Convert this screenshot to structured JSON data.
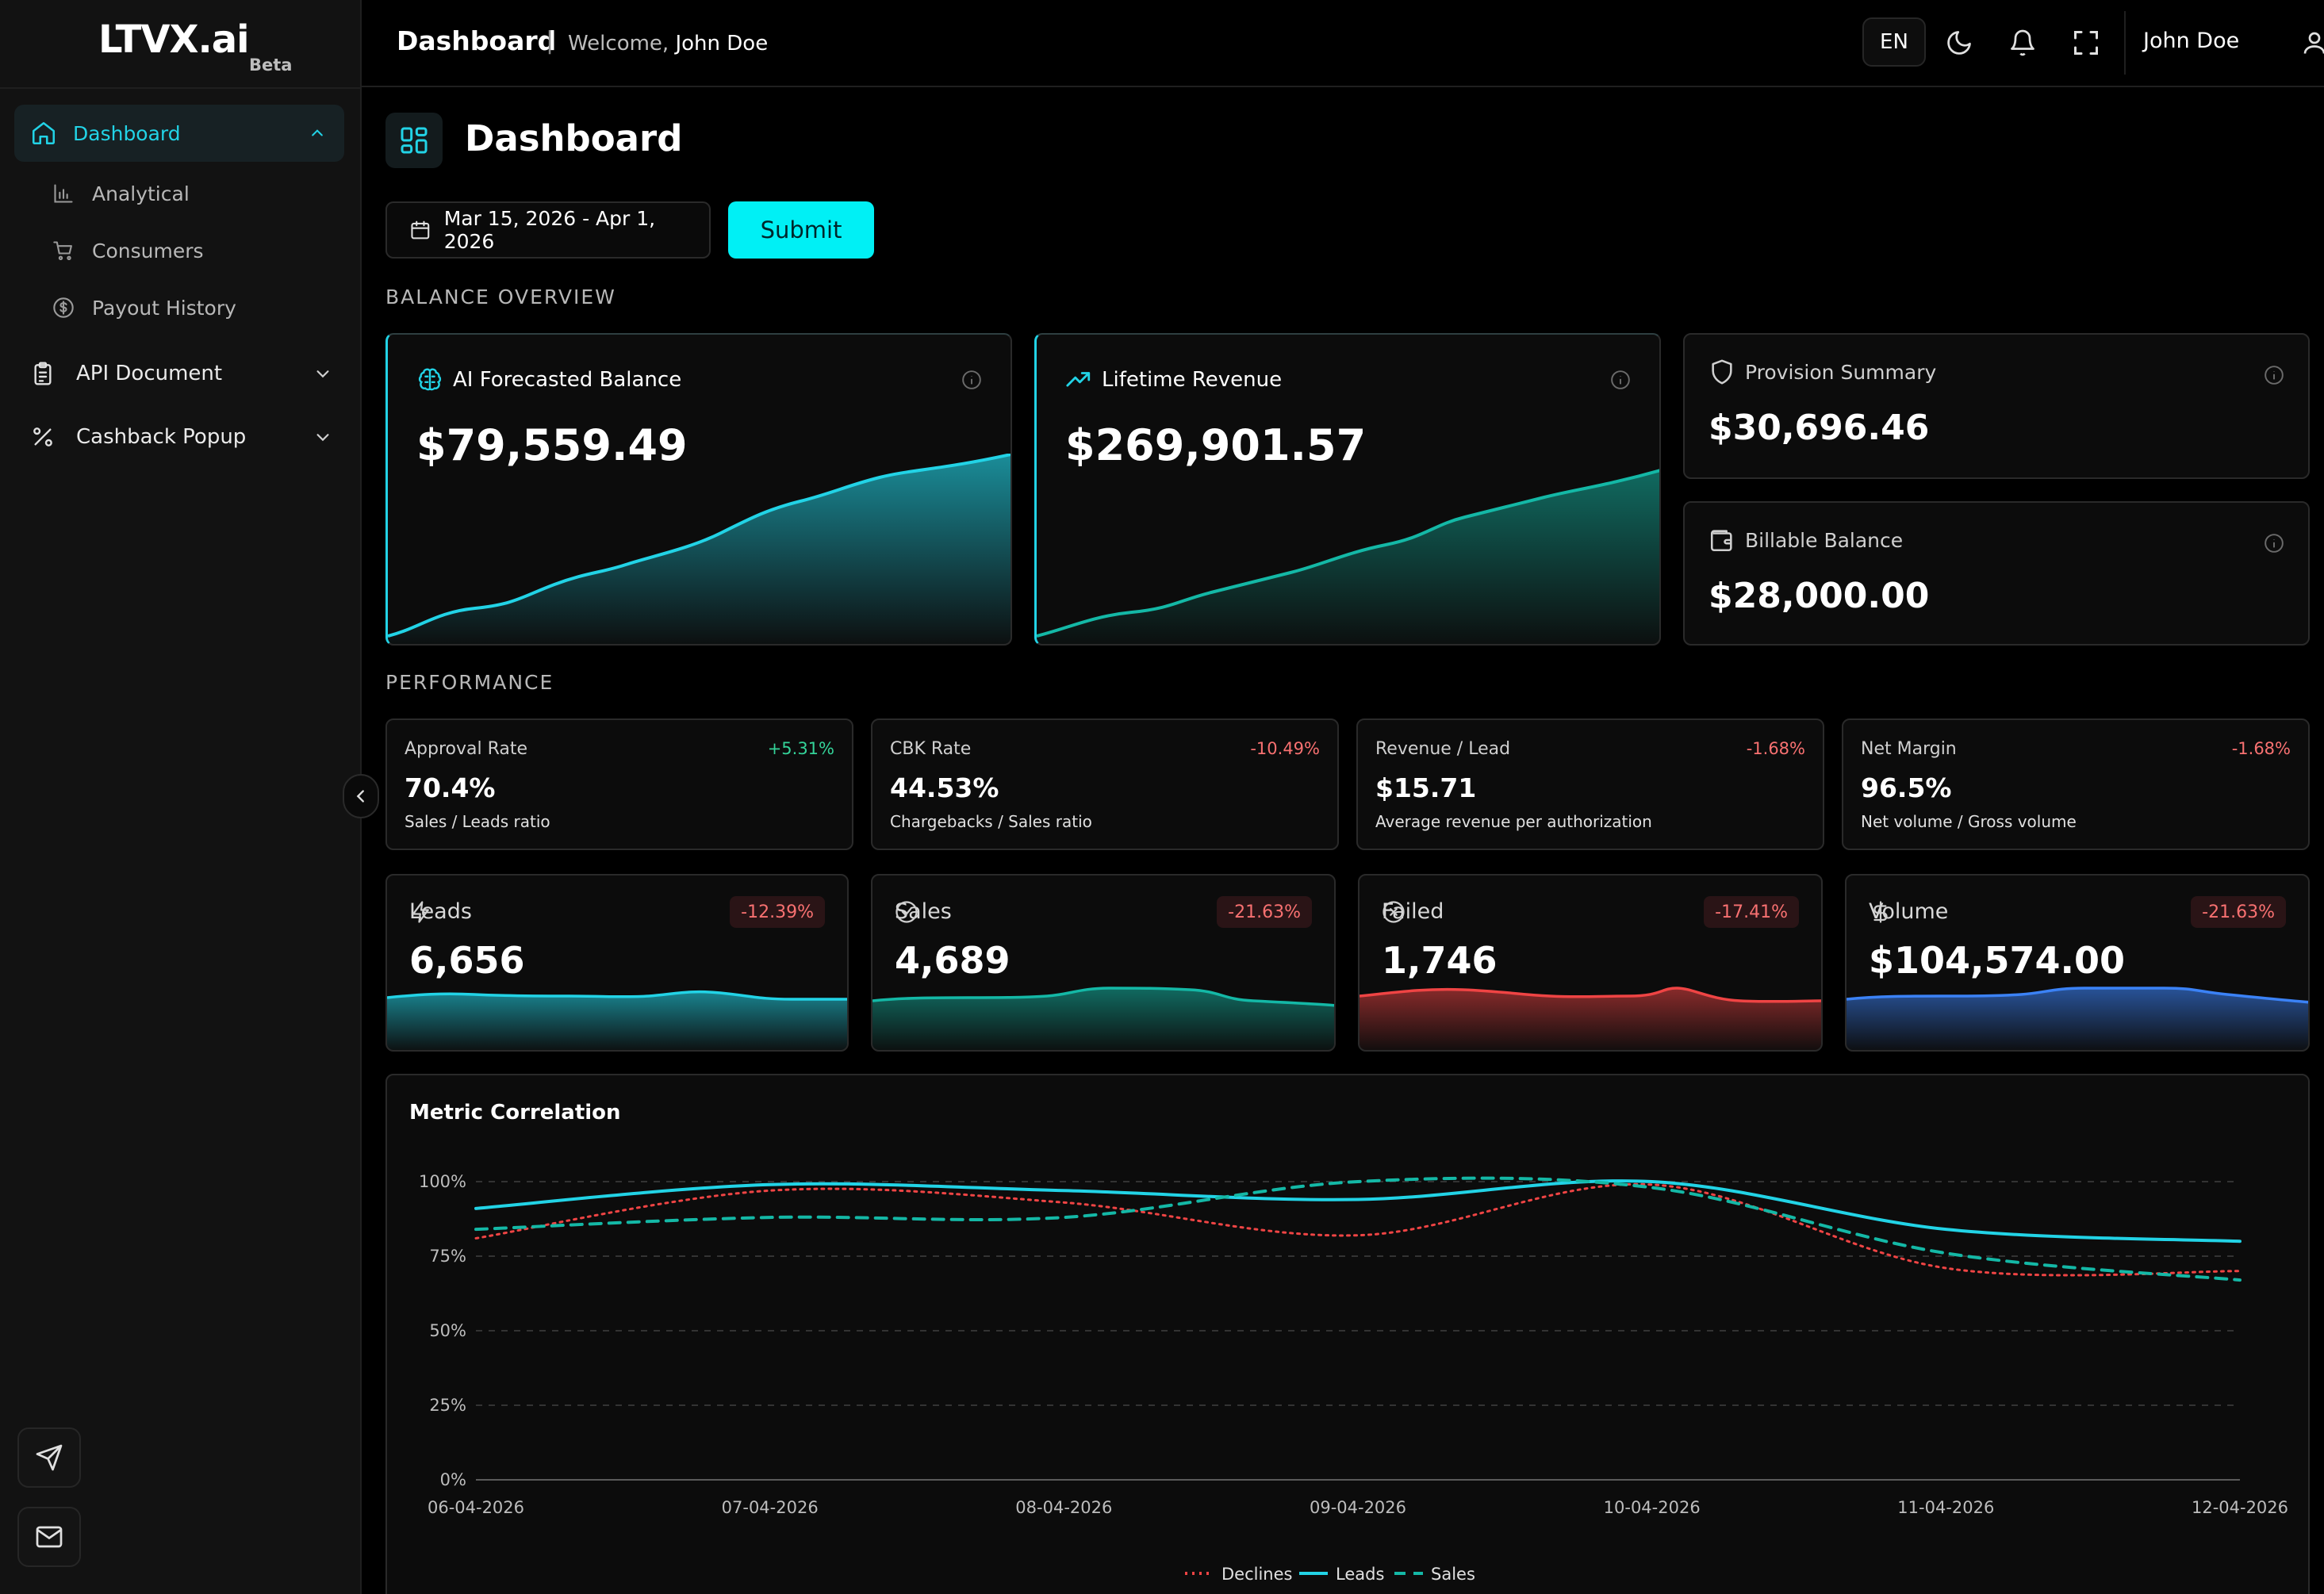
{
  "app": {
    "logo": "LTVX.ai",
    "beta": "Beta"
  },
  "sidebar": {
    "active": {
      "label": "Dashboard",
      "icon": "home-icon"
    },
    "subitems": [
      {
        "label": "Analytical",
        "icon": "bar-chart-icon"
      },
      {
        "label": "Consumers",
        "icon": "cart-icon"
      },
      {
        "label": "Payout History",
        "icon": "dollar-circle-icon"
      }
    ],
    "groups": [
      {
        "label": "API Document",
        "icon": "clipboard-icon"
      },
      {
        "label": "Cashback Popup",
        "icon": "percent-icon"
      }
    ]
  },
  "header": {
    "title": "Dashboard",
    "welcome_prefix": "Welcome,",
    "welcome_name": "John Doe",
    "lang": "EN",
    "username": "John Doe"
  },
  "page": {
    "title": "Dashboard",
    "date_range": "Mar 15, 2026 - Apr 1, 2026",
    "submit": "Submit"
  },
  "balance": {
    "section_label": "BALANCE OVERVIEW",
    "cards": [
      {
        "title": "AI Forecasted Balance",
        "amount": "$79,559.49",
        "icon": "brain-icon"
      },
      {
        "title": "Lifetime Revenue",
        "amount": "$269,901.57",
        "icon": "trending-up-icon"
      },
      {
        "title": "Provision Summary",
        "amount": "$30,696.46",
        "icon": "shield-icon"
      },
      {
        "title": "Billable Balance",
        "amount": "$28,000.00",
        "icon": "wallet-icon"
      }
    ]
  },
  "performance": {
    "section_label": "PERFORMANCE",
    "cards": [
      {
        "title": "Approval Rate",
        "delta": "+5.31%",
        "value": "70.4%",
        "subtitle": "Sales / Leads ratio"
      },
      {
        "title": "CBK Rate",
        "delta": "-10.49%",
        "value": "44.53%",
        "subtitle": "Chargebacks / Sales ratio"
      },
      {
        "title": "Revenue / Lead",
        "delta": "-1.68%",
        "value": "$15.71",
        "subtitle": "Average revenue per authorization"
      },
      {
        "title": "Net Margin",
        "delta": "-1.68%",
        "value": "96.5%",
        "subtitle": "Net volume / Gross volume"
      }
    ]
  },
  "kpis": [
    {
      "title": "Leads",
      "delta": "-12.39%",
      "value": "6,656",
      "icon": "bolt-icon",
      "color": "#22d3e6"
    },
    {
      "title": "Sales",
      "delta": "-21.63%",
      "value": "4,689",
      "icon": "check-circle-icon",
      "color": "#14b8a6"
    },
    {
      "title": "Failed",
      "delta": "-17.41%",
      "value": "1,746",
      "icon": "x-circle-icon",
      "color": "#ef4444"
    },
    {
      "title": "Volume",
      "delta": "-21.63%",
      "value": "$104,574.00",
      "icon": "dollar-icon",
      "color": "#3b82f6"
    }
  ],
  "correlation": {
    "title": "Metric Correlation"
  },
  "chart_data": {
    "type": "line",
    "title": "Metric Correlation",
    "x": [
      "06-04-2026",
      "07-04-2026",
      "08-04-2026",
      "09-04-2026",
      "10-04-2026",
      "11-04-2026",
      "12-04-2026"
    ],
    "y_ticks": [
      "0%",
      "25%",
      "50%",
      "75%",
      "100%"
    ],
    "ylim": [
      0,
      100
    ],
    "legend_position": "bottom-center",
    "grid": true,
    "series": [
      {
        "name": "Declines",
        "style": "dotted",
        "color": "#ef4444",
        "values": [
          81,
          97,
          93,
          82,
          99,
          71,
          70
        ]
      },
      {
        "name": "Leads",
        "style": "solid",
        "color": "#22d3e6",
        "values": [
          91,
          99,
          97,
          94,
          100,
          84,
          80
        ]
      },
      {
        "name": "Sales",
        "style": "dashed",
        "color": "#14b8a6",
        "values": [
          84,
          88,
          88,
          100,
          98,
          76,
          67
        ]
      }
    ]
  },
  "colors": {
    "accent": "#00f0f5",
    "positive": "#34d399",
    "negative": "#f87171"
  }
}
